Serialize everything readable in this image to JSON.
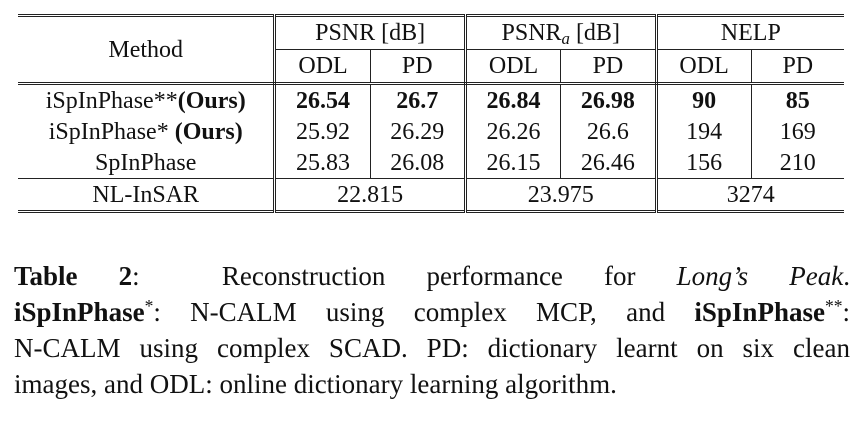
{
  "table": {
    "header": {
      "method": "Method",
      "groups": [
        {
          "name": "PSNR [dB]",
          "name_main": "PSNR",
          "name_sub": "",
          "name_unit": "[dB]"
        },
        {
          "name": "PSNRa [dB]",
          "name_main": "PSNR",
          "name_sub": "a",
          "name_unit": "[dB]"
        },
        {
          "name": "NELP",
          "name_main": "NELP",
          "name_sub": "",
          "name_unit": ""
        }
      ],
      "subcols": [
        "ODL",
        "PD",
        "ODL",
        "PD",
        "ODL",
        "PD"
      ]
    },
    "rows": [
      {
        "method_main": "iSpInPhase**",
        "method_tag": "(Ours)",
        "values": [
          "26.54",
          "26.7",
          "26.84",
          "26.98",
          "90",
          "85"
        ],
        "bold": true
      },
      {
        "method_main": "iSpInPhase* ",
        "method_tag": "(Ours)",
        "values": [
          "25.92",
          "26.29",
          "26.26",
          "26.6",
          "194",
          "169"
        ],
        "bold": false
      },
      {
        "method_main": "SpInPhase",
        "method_tag": "",
        "values": [
          "25.83",
          "26.08",
          "26.15",
          "26.46",
          "156",
          "210"
        ],
        "bold": false
      }
    ],
    "last_row": {
      "method": "NL-InSAR",
      "values": [
        "22.815",
        "23.975",
        "3274"
      ]
    }
  },
  "caption": {
    "label": "Table 2",
    "label_colon": ":",
    "line1_text": "Reconstruction performance for",
    "line1_italic": "Long’s Peak",
    "line1_end": ".",
    "line2_bold1": "iSpInPhase",
    "line2_sup1": "*",
    "line2_text": ": N-CALM using complex MCP, and",
    "line2_bold2": "iSpInPhase",
    "line2_sup2": "**",
    "line2_end": ":",
    "line3": "N-CALM using complex SCAD. PD: dictionary learnt on six clean",
    "line4": "images, and ODL: online dictionary learning algorithm."
  }
}
